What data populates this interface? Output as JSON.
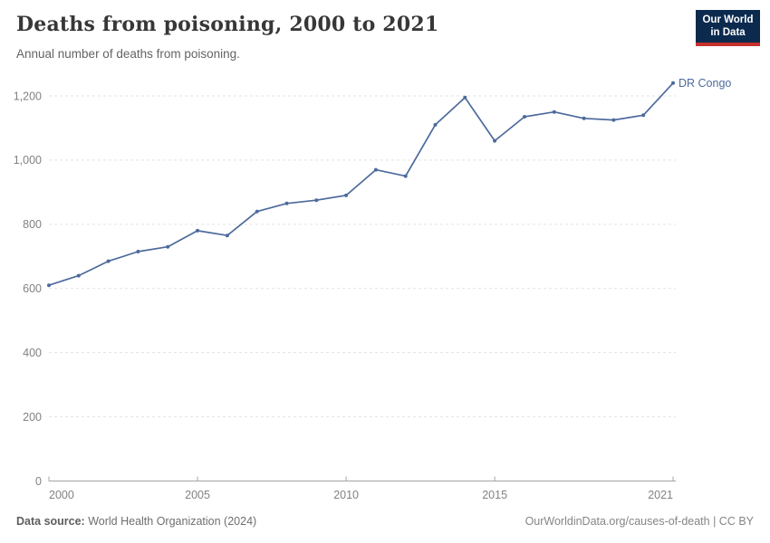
{
  "header": {
    "title": "Deaths from poisoning, 2000 to 2021",
    "subtitle": "Annual number of deaths from poisoning.",
    "logo": {
      "line1": "Our World",
      "line2": "in Data",
      "bg_color": "#0b2a4e",
      "accent_color": "#c5302b",
      "text_color": "#ffffff"
    }
  },
  "chart_data": {
    "type": "line",
    "title": "Deaths from poisoning, 2000 to 2021",
    "xlabel": "",
    "ylabel": "",
    "x": [
      2000,
      2001,
      2002,
      2003,
      2004,
      2005,
      2006,
      2007,
      2008,
      2009,
      2010,
      2011,
      2012,
      2013,
      2014,
      2015,
      2016,
      2017,
      2018,
      2019,
      2020,
      2021
    ],
    "series": [
      {
        "name": "DR Congo",
        "color": "#4c6a9c",
        "values": [
          610,
          640,
          685,
          715,
          730,
          780,
          765,
          840,
          865,
          875,
          890,
          970,
          950,
          1110,
          1195,
          1060,
          1135,
          1150,
          1130,
          1125,
          1140,
          1240
        ]
      }
    ],
    "end_label": "DR Congo",
    "xlim": [
      2000,
      2021
    ],
    "ylim": [
      0,
      1260
    ],
    "xticks": [
      {
        "year": 2000,
        "label": "2000"
      },
      {
        "year": 2005,
        "label": "2005"
      },
      {
        "year": 2010,
        "label": "2010"
      },
      {
        "year": 2015,
        "label": "2015"
      },
      {
        "year": 2021,
        "label": "2021"
      }
    ],
    "yticks": [
      {
        "value": 0,
        "label": "0"
      },
      {
        "value": 200,
        "label": "200"
      },
      {
        "value": 400,
        "label": "400"
      },
      {
        "value": 600,
        "label": "600"
      },
      {
        "value": 800,
        "label": "800"
      },
      {
        "value": 1000,
        "label": "1,000"
      },
      {
        "value": 1200,
        "label": "1,200"
      }
    ],
    "grid": "horizontal-dashed",
    "legend_position": "end-of-line",
    "colors": {
      "gridline": "#e3e3e3",
      "axis": "#a5a5a5",
      "tick_label": "#828282"
    }
  },
  "footer": {
    "source_label": "Data source:",
    "source_text": " World Health Organization (2024)",
    "credit": "OurWorldinData.org/causes-of-death | CC BY"
  }
}
